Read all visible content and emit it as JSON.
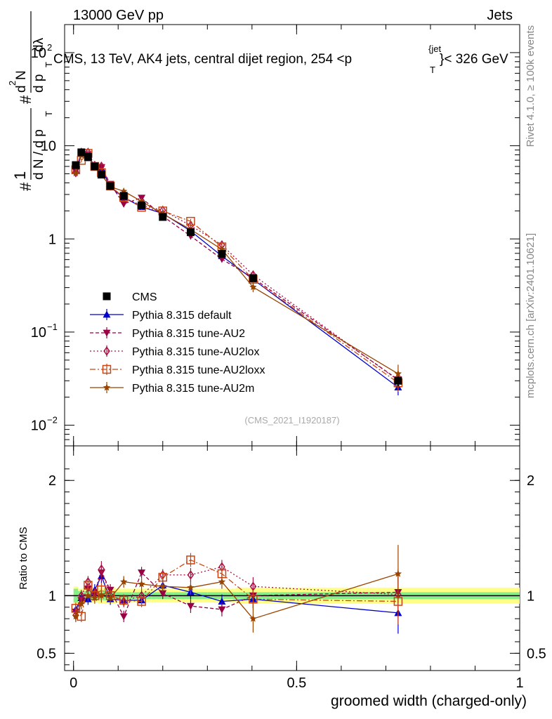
{
  "header": {
    "energy_label": "13000 GeV pp",
    "category_label": "Jets"
  },
  "chart_data": {
    "type": "line",
    "title": "CMS, 13 TeV, AK4 jets, central dijet region, 254 < p_T^{jet} < 326 GeV",
    "title_main": "CMS, 13 TeV, AK4 jets, central dijet region, 254 <p",
    "title_sub": "T",
    "title_sup": "{jet",
    "title_tail": "}< 326 GeV",
    "ylabel": "1/N dN/dp_T d²N/dp_T dλ",
    "ylabel_hash1": "#",
    "ylabel_hash2": "#",
    "ylabel_one": "1",
    "ylabel_dN": "d N / d p",
    "ylabel_T1": "T",
    "ylabel_d2N": "N",
    "ylabel_d2sup": "2",
    "ylabel_d": "d",
    "ylabel_dp": "d p",
    "ylabel_T2": "T",
    "ylabel_dlam": "dλ",
    "ratio_ylabel": "Ratio to CMS",
    "xlabel": "groomed width (charged-only)",
    "analysis_id": "(CMS_2021_I1920187)",
    "side_label_rivet": "Rivet 4.1.0, ≥ 100k events",
    "side_label_mcplots": "mcplots.cern.ch [arXiv:2401.10621]",
    "xlim": [
      -0.02,
      1.0
    ],
    "ylim": [
      0.006,
      200
    ],
    "ratio_ylim": [
      0.35,
      2.3
    ],
    "x_ticks": [
      "0",
      "0.5",
      "1"
    ],
    "x_tick_values": [
      0,
      0.5,
      1
    ],
    "y_ticks": [
      {
        "value": 0.01,
        "base": "10",
        "exp": "−2"
      },
      {
        "value": 0.1,
        "base": "10",
        "exp": "−1"
      },
      {
        "value": 1,
        "base": "1",
        "exp": ""
      },
      {
        "value": 10,
        "base": "10",
        "exp": ""
      },
      {
        "value": 100,
        "base": "10",
        "exp": "2"
      }
    ],
    "ratio_y_ticks": [
      {
        "value": 0.5,
        "label": "0.5"
      },
      {
        "value": 1,
        "label": "1"
      },
      {
        "value": 2,
        "label": "2"
      }
    ],
    "x": [
      0.005,
      0.0175,
      0.0325,
      0.0475,
      0.0625,
      0.0825,
      0.1125,
      0.1525,
      0.2,
      0.2625,
      0.3325,
      0.4025,
      0.7275
    ],
    "x_edges": [
      0.0,
      0.01,
      0.025,
      0.04,
      0.055,
      0.07,
      0.095,
      0.13,
      0.175,
      0.225,
      0.3,
      0.365,
      0.44,
      1.0
    ],
    "ref": {
      "name": "CMS",
      "values": [
        6.2,
        8.5,
        7.6,
        6.0,
        4.9,
        3.7,
        2.9,
        2.3,
        1.72,
        1.18,
        0.69,
        0.38,
        0.03
      ],
      "errors": [
        0.5,
        0.5,
        0.4,
        0.3,
        0.25,
        0.2,
        0.15,
        0.12,
        0.09,
        0.07,
        0.05,
        0.03,
        0.004
      ],
      "ratio_band_stat": [
        0.06,
        0.04,
        0.04,
        0.04,
        0.04,
        0.04,
        0.03,
        0.03,
        0.03,
        0.03,
        0.03,
        0.03,
        0.03
      ],
      "ratio_band_total": [
        0.08,
        0.06,
        0.06,
        0.06,
        0.07,
        0.07,
        0.06,
        0.06,
        0.06,
        0.06,
        0.06,
        0.07,
        0.07
      ]
    },
    "series": [
      {
        "name": "Pythia 8.315 default",
        "color": "#0000cc",
        "dash": "",
        "marker": "triangle-up",
        "ratio": [
          0.88,
          0.98,
          0.97,
          1.05,
          1.17,
          0.97,
          0.96,
          0.96,
          1.09,
          1.03,
          0.95,
          0.97,
          0.85
        ],
        "ratio_err": [
          0.05,
          0.05,
          0.05,
          0.05,
          0.06,
          0.05,
          0.05,
          0.05,
          0.05,
          0.06,
          0.06,
          0.08,
          0.18
        ]
      },
      {
        "name": "Pythia 8.315 tune-AU2",
        "color": "#990044",
        "dash": "5,3",
        "marker": "triangle-down",
        "ratio": [
          0.86,
          0.96,
          1.06,
          1.0,
          1.2,
          1.05,
          0.82,
          1.2,
          1.02,
          0.91,
          0.88,
          1.0,
          1.03
        ],
        "ratio_err": [
          0.05,
          0.05,
          0.05,
          0.05,
          0.07,
          0.05,
          0.05,
          0.05,
          0.05,
          0.06,
          0.06,
          0.08,
          0.2
        ]
      },
      {
        "name": "Pythia 8.315 tune-AU2lox",
        "color": "#aa1144",
        "dash": "2,3",
        "marker": "diamond",
        "ratio": [
          0.83,
          1.0,
          1.12,
          1.02,
          1.23,
          1.0,
          0.95,
          1.0,
          1.18,
          1.18,
          1.25,
          1.08,
          1.01
        ],
        "ratio_err": [
          0.05,
          0.05,
          0.05,
          0.05,
          0.07,
          0.05,
          0.05,
          0.05,
          0.05,
          0.06,
          0.06,
          0.08,
          0.2
        ]
      },
      {
        "name": "Pythia 8.315 tune-AU2loxx",
        "color": "#cc4411",
        "dash": "8,3,2,3",
        "marker": "square-open",
        "ratio": [
          0.89,
          0.82,
          1.09,
          1.0,
          1.05,
          1.0,
          0.96,
          0.95,
          1.16,
          1.31,
          1.19,
          0.97,
          0.95
        ],
        "ratio_err": [
          0.05,
          0.05,
          0.05,
          0.05,
          0.06,
          0.05,
          0.05,
          0.05,
          0.05,
          0.06,
          0.06,
          0.08,
          0.2
        ]
      },
      {
        "name": "Pythia 8.315 tune-AU2m",
        "color": "#994400",
        "dash": "",
        "marker": "star",
        "ratio": [
          0.82,
          0.93,
          1.0,
          0.98,
          1.0,
          0.98,
          1.12,
          1.1,
          1.08,
          1.07,
          1.12,
          0.8,
          1.19
        ],
        "ratio_err": [
          0.05,
          0.05,
          0.05,
          0.05,
          0.06,
          0.05,
          0.05,
          0.05,
          0.05,
          0.06,
          0.06,
          0.12,
          0.25
        ]
      }
    ]
  }
}
